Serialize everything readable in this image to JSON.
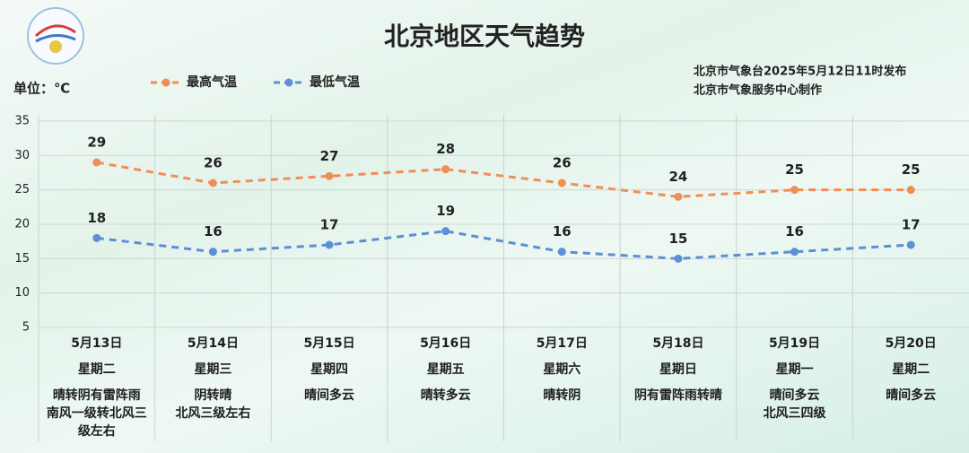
{
  "title": "北京地区天气趋势",
  "unit": "单位：℃",
  "source": [
    "北京市气象台2025年5月12日11时发布",
    "北京市气象服务中心制作"
  ],
  "chart_data": {
    "type": "line",
    "categories": [
      "5月13日",
      "5月14日",
      "5月15日",
      "5月16日",
      "5月17日",
      "5月18日",
      "5月19日",
      "5月20日"
    ],
    "weekdays": [
      "星期二",
      "星期三",
      "星期四",
      "星期五",
      "星期六",
      "星期日",
      "星期一",
      "星期二"
    ],
    "weather": [
      [
        "晴转阴有雷阵雨",
        "南风一级转北风三级左右"
      ],
      [
        "阴转晴",
        "北风三级左右"
      ],
      [
        "晴间多云"
      ],
      [
        "晴转多云"
      ],
      [
        "晴转阴"
      ],
      [
        "阴有雷阵雨转晴"
      ],
      [
        "晴间多云",
        "北风三四级"
      ],
      [
        "晴间多云"
      ]
    ],
    "series": [
      {
        "name": "最高气温",
        "color": "#ef8f55",
        "values": [
          29,
          26,
          27,
          28,
          26,
          24,
          25,
          25
        ]
      },
      {
        "name": "最低气温",
        "color": "#5b8fd6",
        "values": [
          18,
          16,
          17,
          19,
          16,
          15,
          16,
          17
        ]
      }
    ],
    "ylim": [
      5,
      35
    ],
    "yticks": [
      5,
      10,
      15,
      20,
      25,
      30,
      35
    ],
    "grid": true,
    "data_labels": true
  }
}
